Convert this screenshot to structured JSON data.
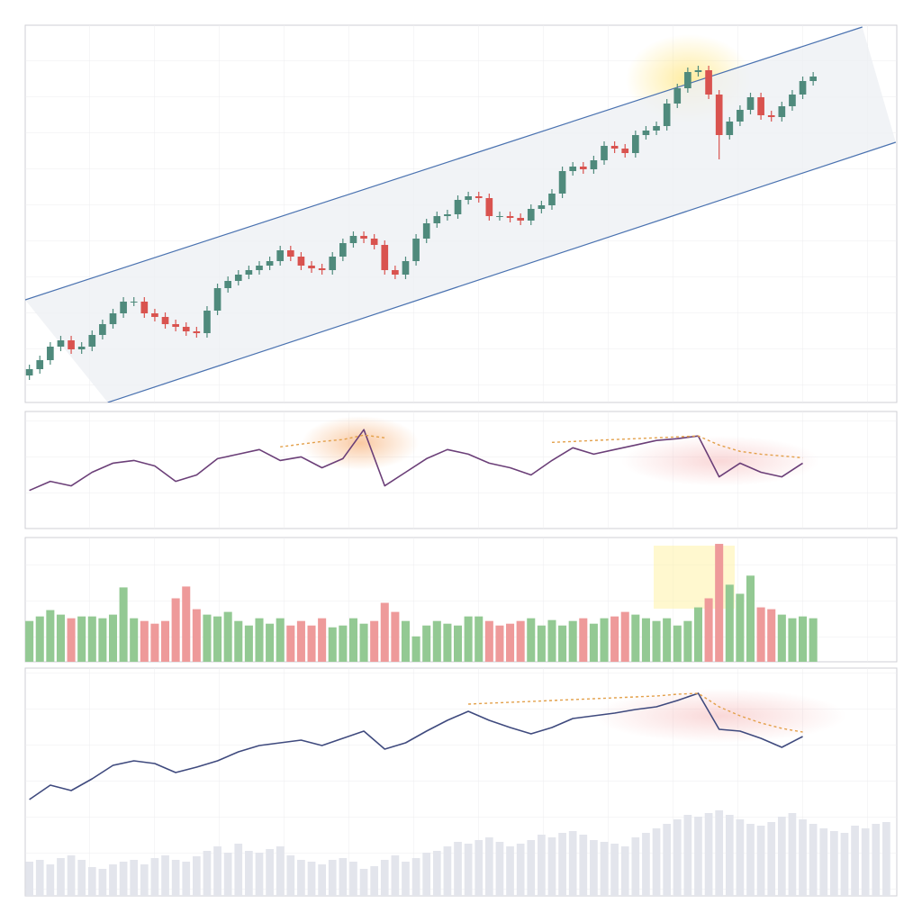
{
  "chart_data": [
    {
      "type": "candlestick",
      "x": [
        0,
        1,
        2,
        3,
        4,
        5,
        6,
        7,
        8,
        9,
        10,
        11,
        12,
        13,
        14,
        15,
        16,
        17,
        18,
        19,
        20,
        21,
        22,
        23,
        24,
        25,
        26,
        27,
        28,
        29,
        30,
        31,
        32,
        33,
        34,
        35,
        36,
        37,
        38,
        39,
        40,
        41,
        42,
        43,
        44,
        45,
        46,
        47,
        48,
        49,
        50,
        51,
        52,
        53,
        54,
        55,
        56,
        57,
        58,
        59,
        60,
        61,
        62,
        63,
        64,
        65,
        66,
        67,
        68,
        69,
        70,
        71,
        72,
        73,
        74,
        75
      ],
      "open": [
        30,
        37,
        47,
        62,
        69,
        59,
        62,
        75,
        87,
        99,
        112,
        112,
        99,
        95,
        87,
        84,
        79,
        77,
        102,
        127,
        135,
        142,
        147,
        152,
        157,
        169,
        162,
        152,
        149,
        147,
        162,
        177,
        185,
        182,
        175,
        147,
        142,
        157,
        182,
        199,
        207,
        209,
        225,
        229,
        227,
        207,
        207,
        205,
        202,
        215,
        219,
        232,
        257,
        262,
        259,
        269,
        285,
        282,
        277,
        297,
        302,
        307,
        332,
        349,
        367,
        369,
        342,
        297,
        312,
        325,
        339,
        319,
        317,
        329,
        342,
        357
      ],
      "high": [
        42,
        52,
        67,
        74,
        74,
        67,
        80,
        92,
        104,
        117,
        117,
        117,
        104,
        100,
        92,
        89,
        84,
        107,
        132,
        140,
        147,
        152,
        157,
        162,
        174,
        174,
        167,
        157,
        154,
        167,
        182,
        190,
        190,
        187,
        180,
        152,
        162,
        187,
        204,
        212,
        214,
        230,
        234,
        234,
        232,
        212,
        212,
        210,
        220,
        224,
        237,
        262,
        267,
        267,
        274,
        290,
        290,
        287,
        302,
        307,
        312,
        337,
        354,
        372,
        374,
        374,
        347,
        317,
        330,
        344,
        344,
        324,
        334,
        347,
        362,
        367
      ],
      "low": [
        25,
        32,
        42,
        57,
        54,
        54,
        57,
        70,
        82,
        94,
        107,
        94,
        90,
        82,
        79,
        74,
        72,
        72,
        97,
        122,
        130,
        137,
        142,
        147,
        152,
        157,
        147,
        144,
        142,
        142,
        157,
        172,
        177,
        170,
        142,
        137,
        137,
        152,
        177,
        194,
        202,
        204,
        220,
        222,
        202,
        202,
        200,
        197,
        197,
        210,
        214,
        227,
        252,
        254,
        254,
        264,
        277,
        272,
        272,
        292,
        297,
        302,
        327,
        344,
        362,
        337,
        270,
        292,
        307,
        320,
        314,
        312,
        312,
        324,
        337,
        352
      ],
      "close": [
        37,
        47,
        62,
        69,
        59,
        62,
        75,
        87,
        99,
        112,
        112,
        99,
        95,
        87,
        84,
        79,
        77,
        102,
        127,
        135,
        142,
        147,
        152,
        157,
        169,
        162,
        152,
        149,
        147,
        162,
        177,
        185,
        182,
        175,
        147,
        142,
        157,
        182,
        199,
        207,
        209,
        225,
        229,
        227,
        207,
        207,
        205,
        202,
        215,
        219,
        232,
        257,
        262,
        259,
        269,
        285,
        282,
        277,
        297,
        302,
        307,
        332,
        349,
        367,
        369,
        342,
        297,
        312,
        325,
        339,
        319,
        317,
        329,
        342,
        357,
        362
      ],
      "up_color": "#4f8a7c",
      "down_color": "#d9534f",
      "xlim": [
        -0.4,
        83
      ],
      "ylim": [
        0,
        419
      ],
      "grid": true,
      "channel": {
        "color": "#4a72b0",
        "upper": {
          "x": [
            -0.4,
            79.7
          ],
          "y": [
            114,
            417
          ]
        },
        "lower": {
          "x": [
            7.5,
            82.9
          ],
          "y": [
            0,
            289
          ]
        }
      }
    },
    {
      "type": "line",
      "x": [
        0,
        2,
        4,
        6,
        8,
        10,
        12,
        14,
        16,
        18,
        20,
        22,
        24,
        26,
        28,
        30,
        32,
        34,
        36,
        38,
        40,
        42,
        44,
        46,
        48,
        50,
        52,
        54,
        56,
        58,
        60,
        62,
        64,
        66,
        68,
        70,
        72,
        74
      ],
      "series": [
        {
          "color": "#6b3f78",
          "values": [
            42,
            52,
            47,
            62,
            72,
            75,
            69,
            52,
            59,
            77,
            82,
            87,
            75,
            79,
            67,
            77,
            109,
            47,
            62,
            77,
            87,
            82,
            72,
            67,
            59,
            75,
            89,
            82,
            87,
            92,
            97,
            99,
            102,
            57,
            72,
            62,
            57,
            72
          ]
        },
        {
          "color": "#e3a04a",
          "dashed": true,
          "values": [
            null,
            null,
            null,
            null,
            null,
            null,
            null,
            null,
            null,
            null,
            null,
            null,
            90,
            93,
            96,
            98,
            103,
            100,
            null,
            null,
            null,
            null,
            null,
            null,
            null,
            95,
            96,
            97,
            98,
            99,
            100,
            101,
            102,
            92,
            85,
            82,
            80,
            78
          ]
        }
      ],
      "xlim": [
        -0.4,
        83
      ],
      "ylim": [
        0,
        129
      ],
      "grid": true
    },
    {
      "type": "bar",
      "x": [
        0,
        1,
        2,
        3,
        4,
        5,
        6,
        7,
        8,
        9,
        10,
        11,
        12,
        13,
        14,
        15,
        16,
        17,
        18,
        19,
        20,
        21,
        22,
        23,
        24,
        25,
        26,
        27,
        28,
        29,
        30,
        31,
        32,
        33,
        34,
        35,
        36,
        37,
        38,
        39,
        40,
        41,
        42,
        43,
        44,
        45,
        46,
        47,
        48,
        49,
        50,
        51,
        52,
        53,
        54,
        55,
        56,
        57,
        58,
        59,
        60,
        61,
        62,
        63,
        64,
        65,
        66,
        67,
        68,
        69,
        70,
        71,
        72,
        73,
        74,
        75
      ],
      "values": [
        45,
        50,
        57,
        52,
        48,
        50,
        50,
        48,
        52,
        82,
        48,
        45,
        42,
        45,
        70,
        83,
        58,
        52,
        50,
        55,
        45,
        40,
        48,
        42,
        48,
        40,
        45,
        40,
        48,
        38,
        40,
        48,
        42,
        45,
        65,
        55,
        45,
        28,
        40,
        45,
        42,
        40,
        50,
        50,
        45,
        40,
        42,
        45,
        48,
        40,
        46,
        40,
        45,
        48,
        42,
        48,
        50,
        55,
        52,
        48,
        45,
        48,
        40,
        45,
        60,
        70,
        130,
        85,
        75,
        95,
        60,
        58,
        52,
        48,
        50,
        48
      ],
      "colors": [
        "#93c993",
        "#93c993",
        "#93c993",
        "#93c993",
        "#ee9a9a",
        "#93c993",
        "#93c993",
        "#93c993",
        "#93c993",
        "#93c993",
        "#93c993",
        "#ee9a9a",
        "#ee9a9a",
        "#ee9a9a",
        "#ee9a9a",
        "#ee9a9a",
        "#ee9a9a",
        "#93c993",
        "#93c993",
        "#93c993",
        "#93c993",
        "#93c993",
        "#93c993",
        "#93c993",
        "#93c993",
        "#ee9a9a",
        "#ee9a9a",
        "#ee9a9a",
        "#ee9a9a",
        "#93c993",
        "#93c993",
        "#93c993",
        "#93c993",
        "#ee9a9a",
        "#ee9a9a",
        "#ee9a9a",
        "#93c993",
        "#93c993",
        "#93c993",
        "#93c993",
        "#93c993",
        "#93c993",
        "#93c993",
        "#93c993",
        "#ee9a9a",
        "#ee9a9a",
        "#ee9a9a",
        "#ee9a9a",
        "#93c993",
        "#93c993",
        "#93c993",
        "#93c993",
        "#93c993",
        "#ee9a9a",
        "#93c993",
        "#93c993",
        "#ee9a9a",
        "#ee9a9a",
        "#93c993",
        "#93c993",
        "#93c993",
        "#93c993",
        "#93c993",
        "#93c993",
        "#93c993",
        "#ee9a9a",
        "#ee9a9a",
        "#93c993",
        "#93c993",
        "#93c993",
        "#ee9a9a",
        "#ee9a9a",
        "#93c993",
        "#93c993",
        "#93c993",
        "#93c993"
      ],
      "xlim": [
        -0.4,
        83
      ],
      "ylim": [
        0,
        137
      ],
      "grid": true
    },
    {
      "type": "line",
      "x": [
        0,
        2,
        4,
        6,
        8,
        10,
        12,
        14,
        16,
        18,
        20,
        22,
        24,
        26,
        28,
        30,
        32,
        34,
        36,
        38,
        40,
        42,
        44,
        46,
        48,
        50,
        52,
        54,
        56,
        58,
        60,
        62,
        64,
        66,
        68,
        70,
        72,
        74
      ],
      "series": [
        {
          "color": "#3f4a7e",
          "values": [
            107,
            123,
            117,
            130,
            145,
            150,
            147,
            137,
            143,
            150,
            160,
            167,
            170,
            173,
            167,
            175,
            183,
            163,
            170,
            183,
            195,
            205,
            195,
            187,
            180,
            187,
            197,
            200,
            203,
            207,
            210,
            217,
            225,
            185,
            183,
            175,
            165,
            177
          ]
        },
        {
          "color": "#e3a04a",
          "dashed": true,
          "values": [
            null,
            null,
            null,
            null,
            null,
            null,
            null,
            null,
            null,
            null,
            null,
            null,
            null,
            null,
            null,
            null,
            null,
            null,
            null,
            null,
            null,
            213,
            214,
            215,
            216,
            217,
            218,
            219,
            220,
            221,
            222,
            224,
            225,
            210,
            200,
            192,
            186,
            182
          ]
        }
      ],
      "bars": {
        "color": "#e3e5ec",
        "x": [
          0,
          1,
          2,
          3,
          4,
          5,
          6,
          7,
          8,
          9,
          10,
          11,
          12,
          13,
          14,
          15,
          16,
          17,
          18,
          19,
          20,
          21,
          22,
          23,
          24,
          25,
          26,
          27,
          28,
          29,
          30,
          31,
          32,
          33,
          34,
          35,
          36,
          37,
          38,
          39,
          40,
          41,
          42,
          43,
          44,
          45,
          46,
          47,
          48,
          49,
          50,
          51,
          52,
          53,
          54,
          55,
          56,
          57,
          58,
          59,
          60,
          61,
          62,
          63,
          64,
          65,
          66,
          67,
          68,
          69,
          70,
          71,
          72,
          73,
          74,
          75,
          76,
          77,
          78,
          79,
          80,
          81,
          82
        ],
        "values": [
          38,
          40,
          35,
          42,
          45,
          40,
          32,
          30,
          35,
          38,
          40,
          35,
          42,
          45,
          40,
          38,
          44,
          50,
          55,
          48,
          58,
          50,
          48,
          52,
          55,
          45,
          40,
          38,
          35,
          40,
          42,
          38,
          30,
          33,
          40,
          45,
          38,
          42,
          48,
          50,
          55,
          60,
          58,
          62,
          65,
          60,
          55,
          58,
          62,
          68,
          65,
          70,
          72,
          68,
          62,
          60,
          58,
          55,
          65,
          70,
          75,
          80,
          85,
          90,
          88,
          92,
          95,
          90,
          85,
          80,
          78,
          82,
          88,
          92,
          85,
          80,
          75,
          72,
          70,
          78,
          75,
          80,
          82
        ]
      },
      "xlim": [
        -0.4,
        83
      ],
      "ylim": [
        0,
        253
      ],
      "grid": true
    }
  ]
}
